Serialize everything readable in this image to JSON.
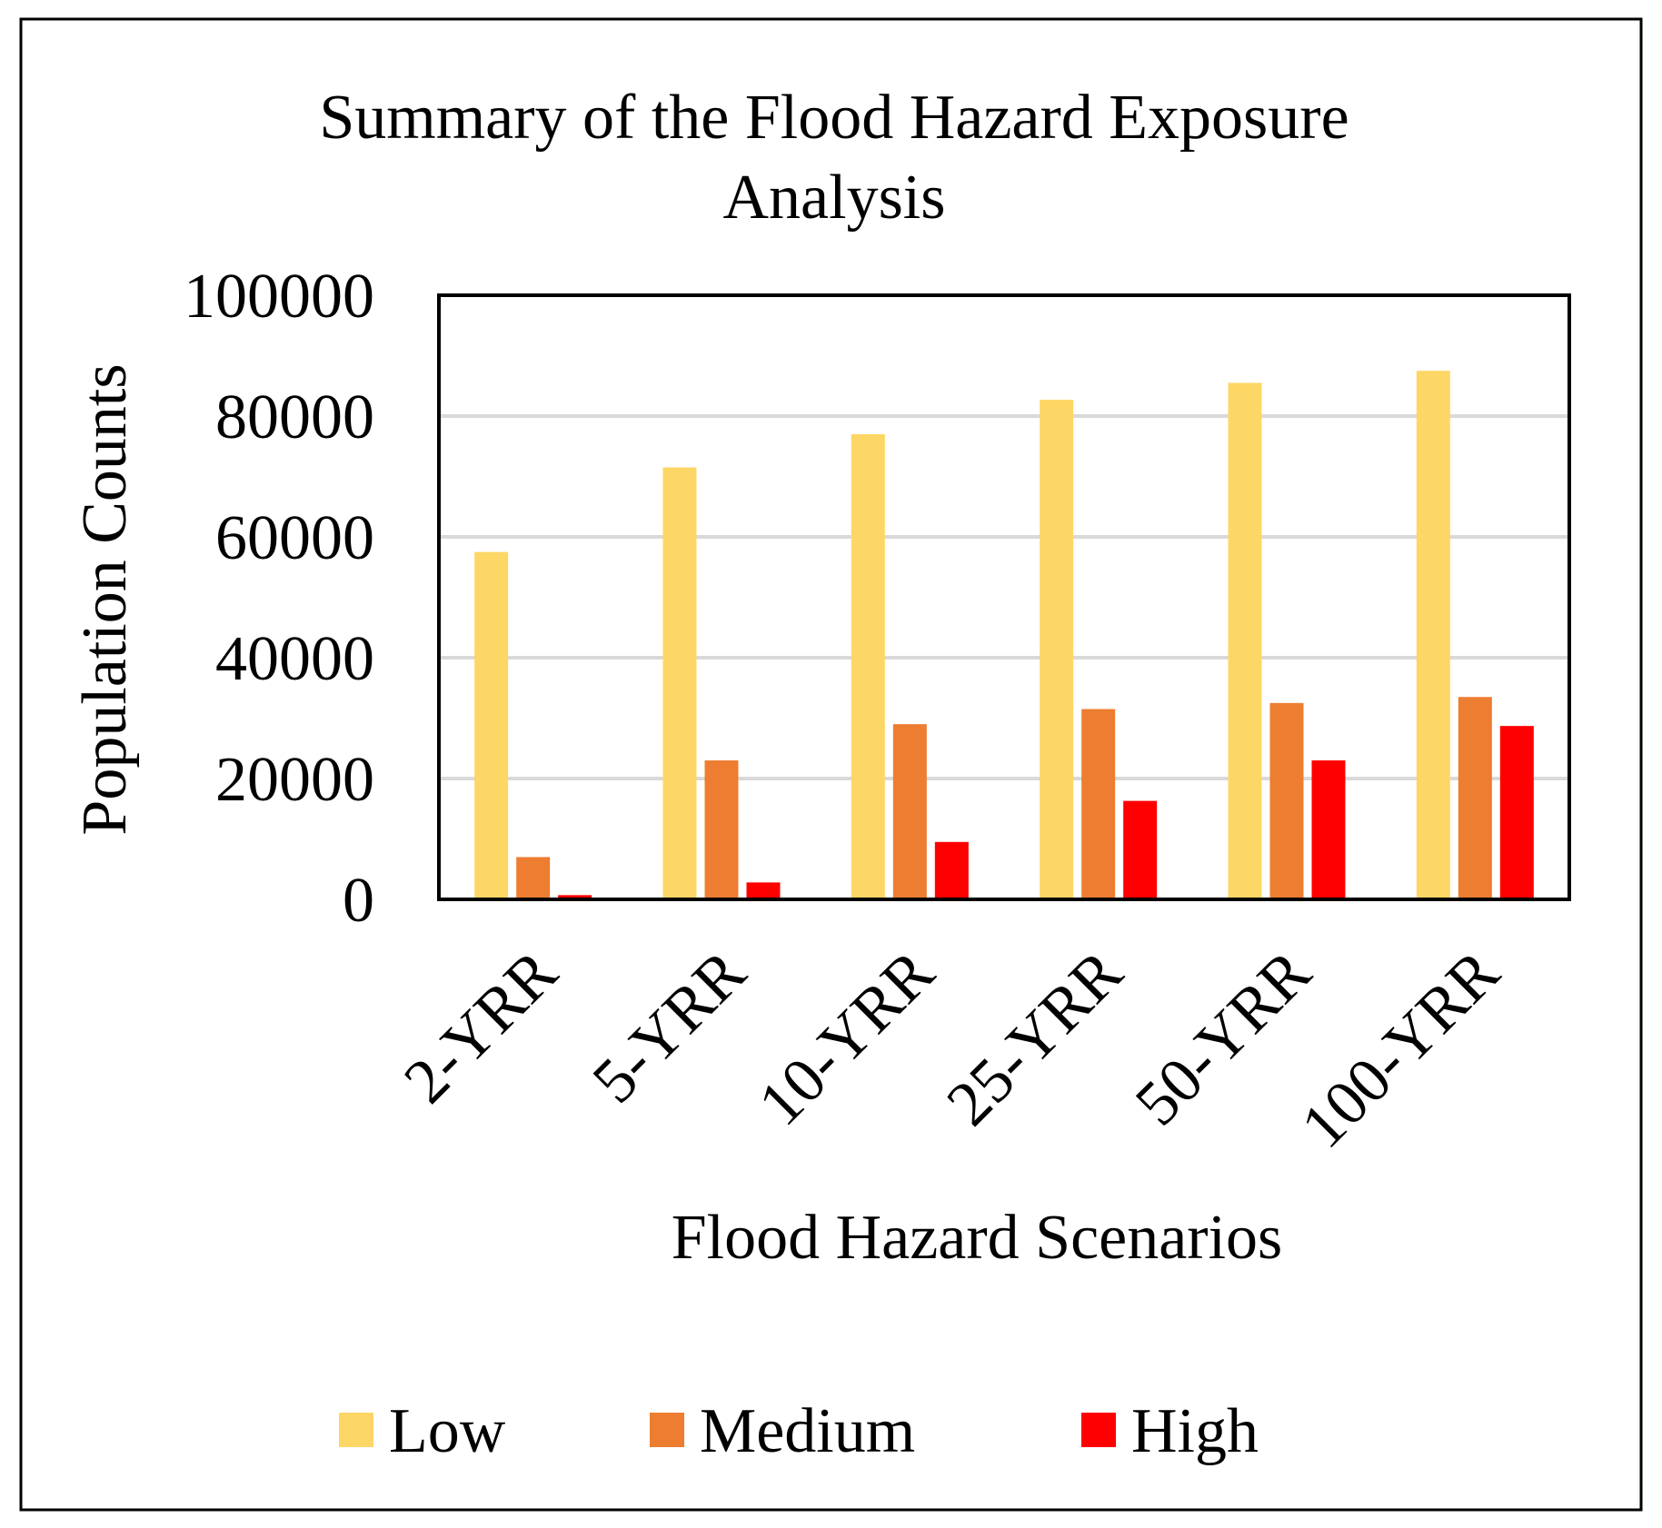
{
  "chart_data": {
    "type": "bar",
    "title_lines": [
      "Summary of the Flood Hazard Exposure",
      "Analysis"
    ],
    "xlabel": "Flood Hazard Scenarios",
    "ylabel": "Population Counts",
    "categories": [
      "2-YRR",
      "5-YRR",
      "10-YRR",
      "25-YRR",
      "50-YRR",
      "100-YRR"
    ],
    "ylim": [
      0,
      100000
    ],
    "yticks": [
      0,
      20000,
      40000,
      60000,
      80000,
      100000
    ],
    "ytick_labels": [
      "0",
      "20000",
      "40000",
      "60000",
      "80000",
      "100000"
    ],
    "grid": true,
    "legend_position": "bottom",
    "series": [
      {
        "name": "Low",
        "color": "#FDD765",
        "values": [
          57500,
          71500,
          77000,
          82700,
          85500,
          87500
        ]
      },
      {
        "name": "Medium",
        "color": "#ED7D31",
        "values": [
          7000,
          23000,
          29000,
          31500,
          32500,
          33500
        ]
      },
      {
        "name": "High",
        "color": "#FF0000",
        "values": [
          700,
          2800,
          9500,
          16300,
          23000,
          28700
        ]
      }
    ]
  }
}
